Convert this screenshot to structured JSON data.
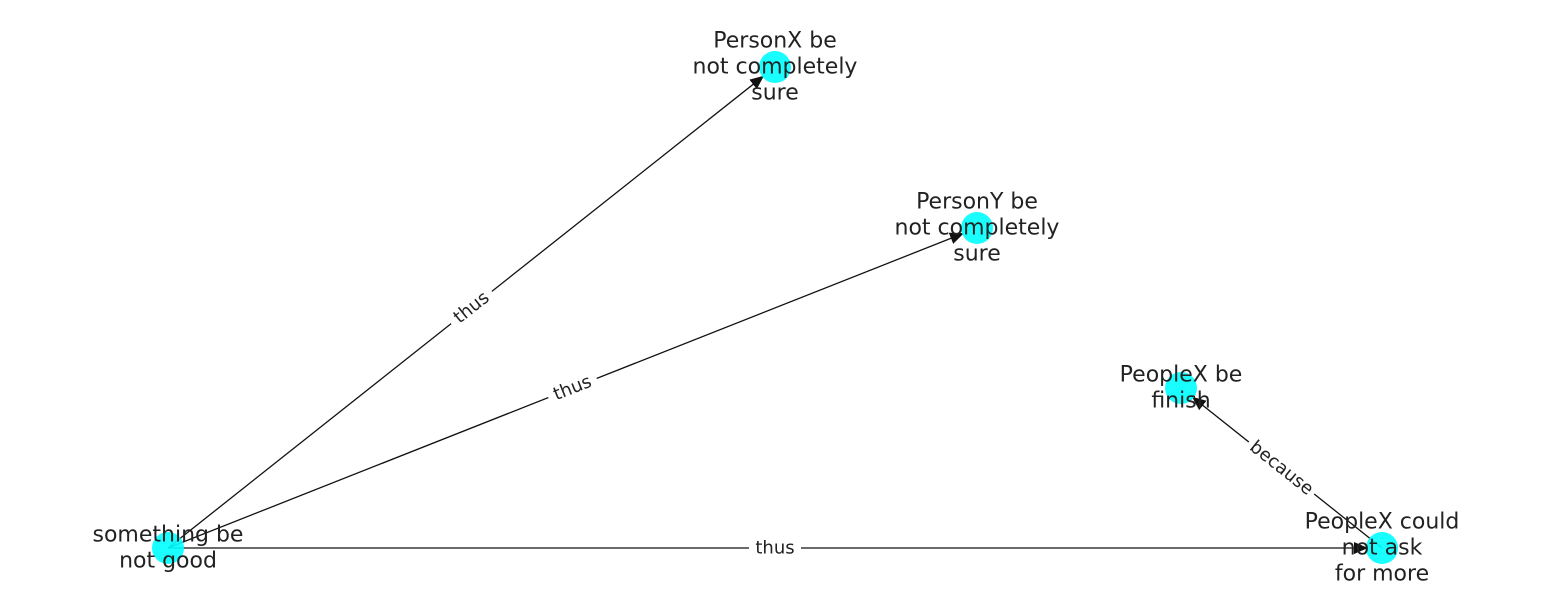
{
  "nodes": [
    {
      "id": "n1",
      "label_lines": [
        "something be",
        "not good"
      ]
    },
    {
      "id": "n2",
      "label_lines": [
        "PersonX be",
        "not completely",
        "sure"
      ]
    },
    {
      "id": "n3",
      "label_lines": [
        "PersonY be",
        "not completely",
        "sure"
      ]
    },
    {
      "id": "n4",
      "label_lines": [
        "PeopleX be",
        "finish"
      ]
    },
    {
      "id": "n5",
      "label_lines": [
        "PeopleX could",
        "not ask",
        "for more"
      ]
    }
  ],
  "edges": [
    {
      "from": "n1",
      "to": "n2",
      "label": "thus"
    },
    {
      "from": "n1",
      "to": "n3",
      "label": "thus"
    },
    {
      "from": "n1",
      "to": "n5",
      "label": "thus"
    },
    {
      "from": "n5",
      "to": "n4",
      "label": "because"
    }
  ],
  "colors": {
    "node": "#00ffff",
    "edge": "#111111",
    "text": "#222222"
  }
}
